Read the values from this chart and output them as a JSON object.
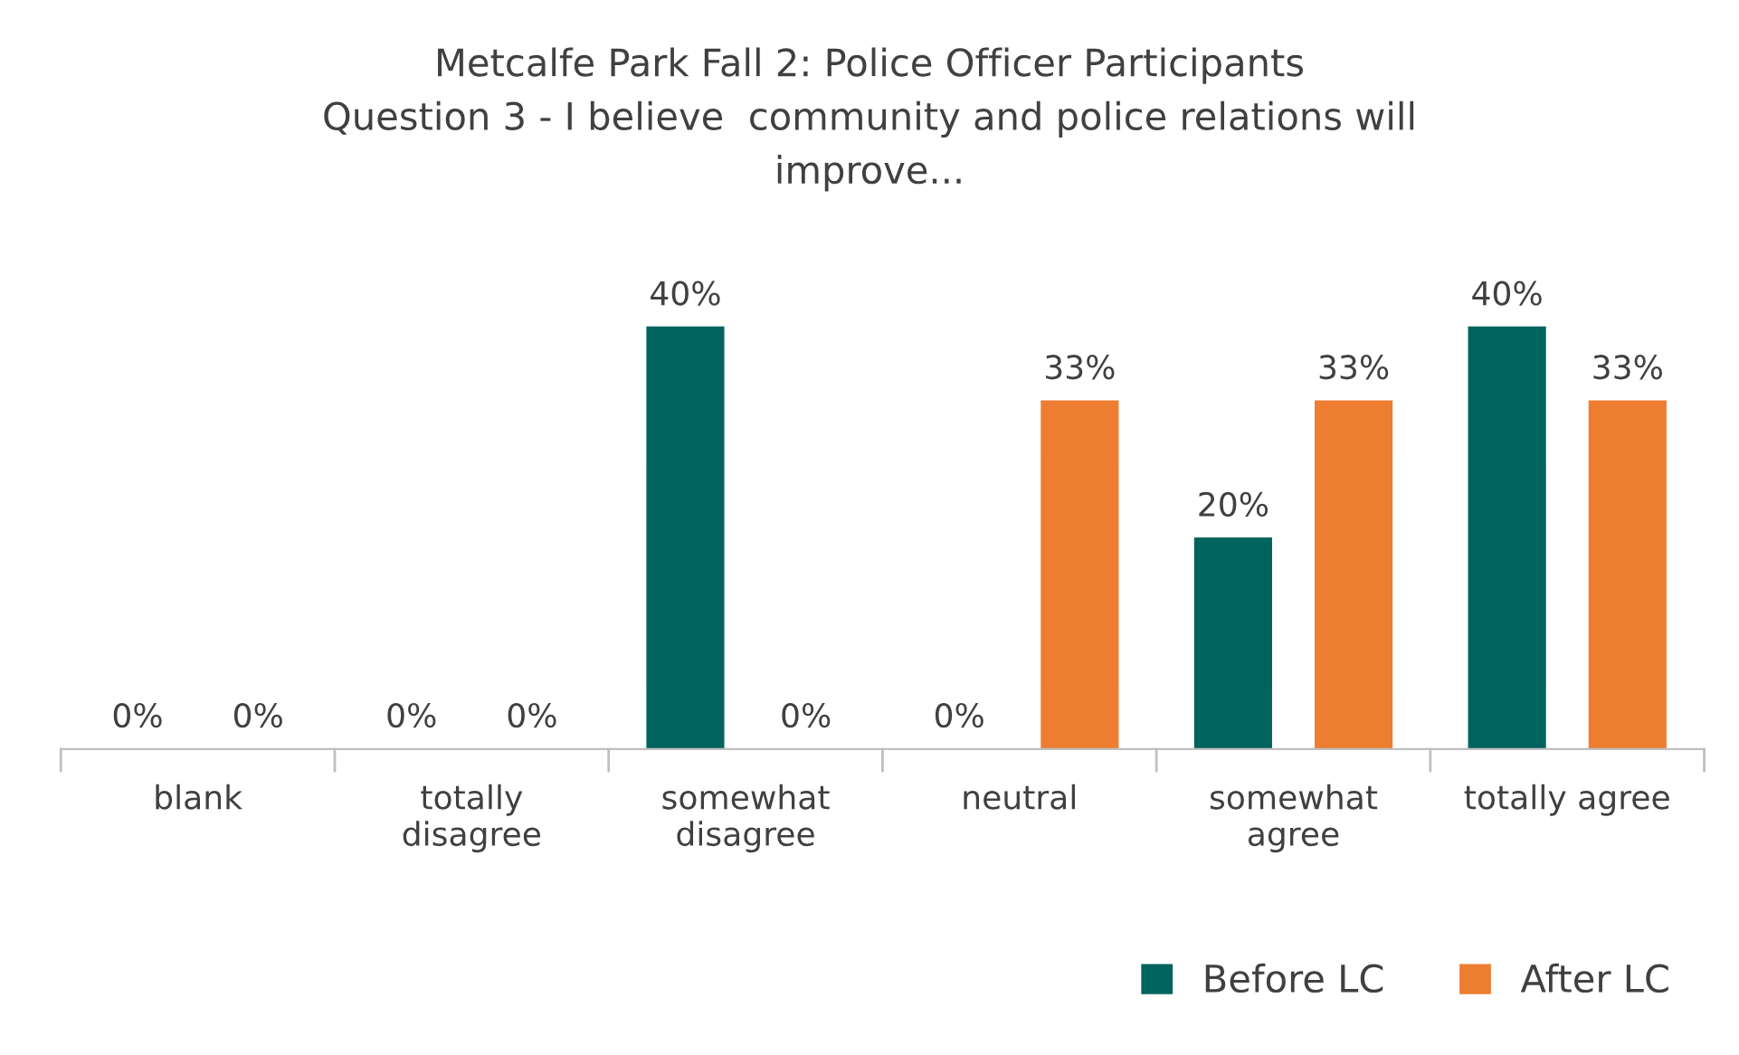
{
  "chart_data": {
    "type": "bar",
    "title": "Metcalfe Park Fall 2: Police Officer Participants\nQuestion 3 - I believe  community and police relations will\nimprove...",
    "categories": [
      "blank",
      "totally\ndisagree",
      "somewhat\ndisagree",
      "neutral",
      "somewhat\nagree",
      "totally agree"
    ],
    "series": [
      {
        "name": "Before LC",
        "color": "#00635e",
        "values": [
          0,
          0,
          40,
          0,
          20,
          40
        ],
        "value_labels": [
          "0%",
          "0%",
          "40%",
          "0%",
          "20%",
          "40%"
        ]
      },
      {
        "name": "After LC",
        "color": "#ed7d31",
        "values": [
          0,
          0,
          0,
          33,
          33,
          33
        ],
        "value_labels": [
          "0%",
          "0%",
          "0%",
          "33%",
          "33%",
          "33%"
        ]
      }
    ],
    "legend": "bottom right"
  }
}
